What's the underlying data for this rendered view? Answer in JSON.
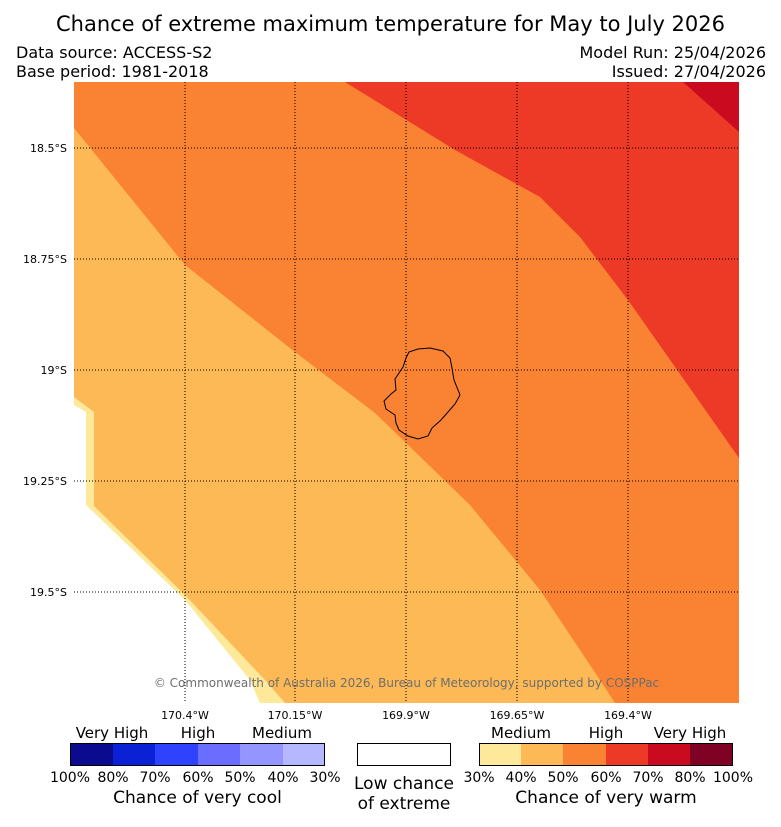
{
  "title": "Chance of extreme maximum temperature for May to July 2026",
  "data_source": "Data source: ACCESS-S2",
  "base_period": "Base period: 1981-2018",
  "model_run": "Model Run: 25/04/2026",
  "issued": "Issued: 27/04/2026",
  "map": {
    "latitude_labels": [
      "18.5°S",
      "18.75°S",
      "19°S",
      "19.25°S",
      "19.5°S"
    ],
    "longitude_labels": [
      "170.4°W",
      "170.15°W",
      "169.9°W",
      "169.65°W",
      "169.4°W"
    ],
    "region_depicted": "Niue island outline",
    "copyright": "© Commonwealth of Australia 2026, Bureau of Meteorology, supported by COSPPac"
  },
  "legend": {
    "cool": {
      "category_labels": [
        "Very High",
        "High",
        "Medium"
      ],
      "percent_labels": [
        "100%",
        "80%",
        "70%",
        "60%",
        "50%",
        "40%",
        "30%"
      ],
      "colors": [
        "#0b0b8f",
        "#0a21d6",
        "#2f43ff",
        "#6a6dff",
        "#9495ff",
        "#b6b8ff"
      ],
      "caption": "Chance of very cool"
    },
    "neutral": {
      "label_line1": "Low chance",
      "label_line2": "of extreme",
      "color": "#ffffff"
    },
    "warm": {
      "category_labels": [
        "Medium",
        "High",
        "Very High"
      ],
      "percent_labels": [
        "30%",
        "40%",
        "50%",
        "60%",
        "70%",
        "80%",
        "100%"
      ],
      "colors": [
        "#fee99a",
        "#fcb955",
        "#f98233",
        "#ec3a26",
        "#c90a1f",
        "#7f0225"
      ],
      "caption": "Chance of very warm"
    }
  }
}
